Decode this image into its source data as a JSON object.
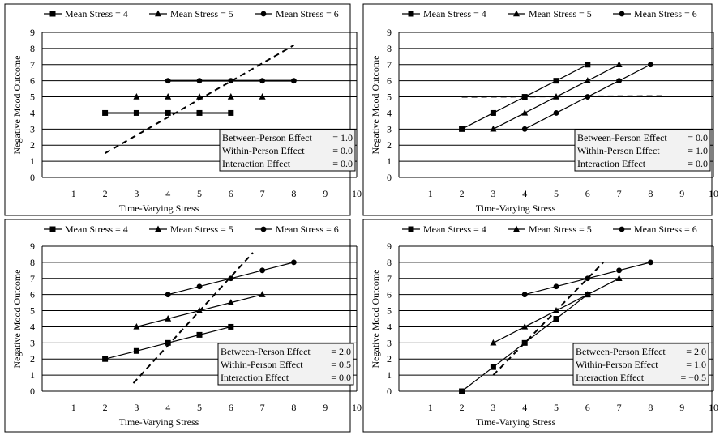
{
  "chart_data": [
    {
      "type": "line",
      "xlabel": "Time-Varying Stress",
      "ylabel": "Negative Mood Outcome",
      "xlim": [
        0,
        10
      ],
      "ylim": [
        0,
        9
      ],
      "xticks": [
        1,
        2,
        3,
        4,
        5,
        6,
        7,
        8,
        9,
        10
      ],
      "yticks": [
        0,
        1,
        2,
        3,
        4,
        5,
        6,
        7,
        8,
        9
      ],
      "grid": "horizontal",
      "legend_position": "top",
      "connected": false,
      "series": [
        {
          "name": "Mean Stress = 4",
          "marker": "square",
          "x": [
            2,
            3,
            4,
            5,
            6
          ],
          "y": [
            4,
            4,
            4,
            4,
            4
          ]
        },
        {
          "name": "Mean Stress = 5",
          "marker": "triangle",
          "x": [
            3,
            4,
            5,
            6,
            7
          ],
          "y": [
            5,
            5,
            5,
            5,
            5
          ]
        },
        {
          "name": "Mean Stress = 6",
          "marker": "circle",
          "x": [
            4,
            5,
            6,
            7,
            8
          ],
          "y": [
            6,
            6,
            6,
            6,
            6
          ]
        }
      ],
      "dashed_line": {
        "x": [
          2,
          8
        ],
        "y": [
          1.5,
          8.2
        ]
      },
      "effects": [
        {
          "label": "Between-Person Effect",
          "value": "= 1.0"
        },
        {
          "label": "Within-Person Effect",
          "value": "= 0.0"
        },
        {
          "label": "Interaction Effect",
          "value": "= 0.0"
        }
      ]
    },
    {
      "type": "line",
      "xlabel": "Time-Varying Stress",
      "ylabel": "Negative Mood Outcome",
      "xlim": [
        0,
        10
      ],
      "ylim": [
        0,
        9
      ],
      "xticks": [
        1,
        2,
        3,
        4,
        5,
        6,
        7,
        8,
        9,
        10
      ],
      "yticks": [
        0,
        1,
        2,
        3,
        4,
        5,
        6,
        7,
        8,
        9
      ],
      "grid": "horizontal",
      "legend_position": "top",
      "connected": true,
      "series": [
        {
          "name": "Mean Stress = 4",
          "marker": "square",
          "x": [
            2,
            3,
            4,
            5,
            6
          ],
          "y": [
            3,
            4,
            5,
            6,
            7
          ]
        },
        {
          "name": "Mean Stress = 5",
          "marker": "triangle",
          "x": [
            3,
            4,
            5,
            6,
            7
          ],
          "y": [
            3,
            4,
            5,
            6,
            7
          ]
        },
        {
          "name": "Mean Stress = 6",
          "marker": "circle",
          "x": [
            4,
            5,
            6,
            7,
            8
          ],
          "y": [
            3,
            4,
            5,
            6,
            7
          ]
        }
      ],
      "dashed_line": {
        "x": [
          2,
          8.5
        ],
        "y": [
          5,
          5.05
        ]
      },
      "effects": [
        {
          "label": "Between-Person Effect",
          "value": "= 0.0"
        },
        {
          "label": "Within-Person Effect",
          "value": "= 1.0"
        },
        {
          "label": "Interaction Effect",
          "value": "= 0.0"
        }
      ]
    },
    {
      "type": "line",
      "xlabel": "Time-Varying Stress",
      "ylabel": "Negative Mood Outcome",
      "xlim": [
        0,
        10
      ],
      "ylim": [
        0,
        9
      ],
      "xticks": [
        1,
        2,
        3,
        4,
        5,
        6,
        7,
        8,
        9,
        10
      ],
      "yticks": [
        0,
        1,
        2,
        3,
        4,
        5,
        6,
        7,
        8,
        9
      ],
      "grid": "horizontal",
      "legend_position": "top",
      "connected": true,
      "series": [
        {
          "name": "Mean Stress = 4",
          "marker": "square",
          "x": [
            2,
            3,
            4,
            5,
            6
          ],
          "y": [
            2,
            2.5,
            3,
            3.5,
            4
          ]
        },
        {
          "name": "Mean Stress = 5",
          "marker": "triangle",
          "x": [
            3,
            4,
            5,
            6,
            7
          ],
          "y": [
            4,
            4.5,
            5,
            5.5,
            6
          ]
        },
        {
          "name": "Mean Stress = 6",
          "marker": "circle",
          "x": [
            4,
            5,
            6,
            7,
            8
          ],
          "y": [
            6,
            6.5,
            7,
            7.5,
            8
          ]
        }
      ],
      "dashed_line": {
        "x": [
          2.9,
          6.7
        ],
        "y": [
          0.5,
          8.6
        ]
      },
      "effects": [
        {
          "label": "Between-Person Effect",
          "value": "= 2.0"
        },
        {
          "label": "Within-Person Effect",
          "value": "= 0.5"
        },
        {
          "label": "Interaction Effect",
          "value": "= 0.0"
        }
      ]
    },
    {
      "type": "line",
      "xlabel": "Time-Varying Stress",
      "ylabel": "Negative Mood Outcome",
      "xlim": [
        0,
        10
      ],
      "ylim": [
        0,
        9
      ],
      "xticks": [
        1,
        2,
        3,
        4,
        5,
        6,
        7,
        8,
        9,
        10
      ],
      "yticks": [
        0,
        1,
        2,
        3,
        4,
        5,
        6,
        7,
        8,
        9
      ],
      "grid": "horizontal",
      "legend_position": "top",
      "connected": true,
      "series": [
        {
          "name": "Mean Stress = 4",
          "marker": "square",
          "x": [
            2,
            3,
            4,
            5,
            6
          ],
          "y": [
            0,
            1.5,
            3,
            4.5,
            6
          ]
        },
        {
          "name": "Mean Stress = 5",
          "marker": "triangle",
          "x": [
            3,
            4,
            5,
            6,
            7
          ],
          "y": [
            3,
            4,
            5,
            6,
            7
          ]
        },
        {
          "name": "Mean Stress = 6",
          "marker": "circle",
          "x": [
            4,
            5,
            6,
            7,
            8
          ],
          "y": [
            6,
            6.5,
            7,
            7.5,
            8
          ]
        }
      ],
      "dashed_line": {
        "x": [
          3,
          6.5
        ],
        "y": [
          1,
          8
        ]
      },
      "effects": [
        {
          "label": "Between-Person Effect",
          "value": "= 2.0"
        },
        {
          "label": "Within-Person Effect",
          "value": "= 1.0"
        },
        {
          "label": "Interaction Effect",
          "value": "= −0.5"
        }
      ]
    }
  ]
}
